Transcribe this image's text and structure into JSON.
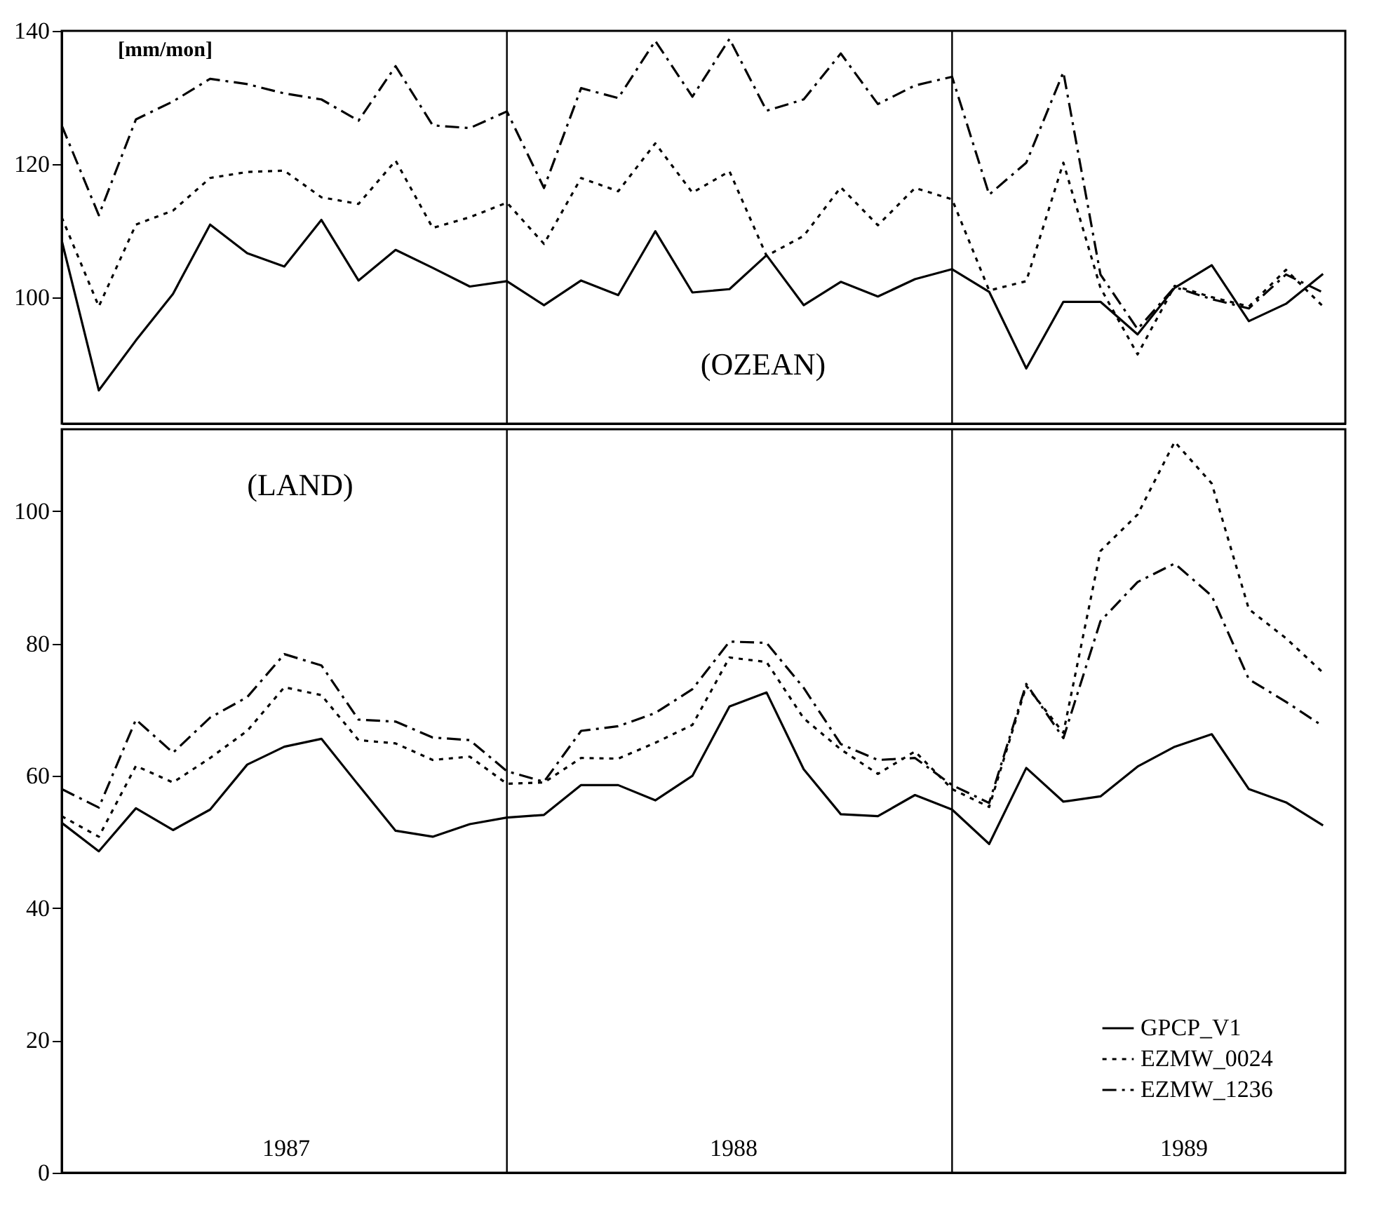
{
  "chart_data": [
    {
      "type": "line",
      "annotations": [
        "[mm/mon]",
        "(OZEAN)"
      ],
      "categories": [
        null,
        null,
        null,
        null,
        null,
        null,
        null,
        null,
        null,
        null,
        null,
        null,
        null,
        null,
        null,
        null,
        null,
        null,
        null,
        null,
        null,
        null,
        null,
        null,
        null,
        null,
        null,
        null,
        null,
        null,
        null,
        null,
        null,
        null,
        null
      ],
      "ylim": [
        81,
        140
      ],
      "yticks": [
        100,
        120,
        140
      ],
      "tick_labels": "y",
      "legend": false,
      "series": [
        {
          "color": "#000000",
          "line_style": "solid",
          "values": [
            108.5,
            86,
            93.5,
            100.5,
            110.9,
            106.6,
            104.6,
            111.6,
            102.5,
            107.1,
            104.4,
            101.6,
            102.4,
            98.8,
            102.5,
            100.3,
            109.9,
            100.7,
            101.2,
            106.3,
            98.8,
            102.3,
            100.1,
            102.7,
            104.2,
            100.8,
            89.3,
            99.3,
            99.3,
            94.4,
            101.4,
            104.8,
            96.4,
            99,
            103.5
          ]
        },
        {
          "color": "#000000",
          "line_style": "dotted",
          "values": [
            112,
            98.6,
            110.9,
            113,
            117.9,
            118.8,
            119,
            115,
            114,
            120.5,
            110.4,
            112,
            114.2,
            108,
            117.9,
            115.9,
            123.1,
            115.7,
            118.9,
            106.2,
            109.2,
            116.5,
            110.8,
            116.4,
            114.7,
            101,
            102.4,
            120.2,
            101.4,
            91.4,
            101.7,
            100,
            98.6,
            104.1,
            98.6
          ]
        },
        {
          "color": "#000000",
          "line_style": "dashed",
          "values": [
            125.8,
            112.3,
            126.7,
            129.4,
            132.8,
            132,
            130.6,
            129.7,
            126.5,
            134.7,
            125.8,
            125.4,
            127.9,
            116.4,
            131.4,
            129.9,
            138.5,
            130.1,
            138.8,
            128,
            129.7,
            136.6,
            129,
            131.8,
            133.1,
            115.4,
            120.2,
            133.8,
            103.4,
            95.2,
            101.5,
            99.7,
            98.3,
            103.4,
            100.7
          ]
        }
      ]
    },
    {
      "type": "line",
      "annotations": [
        "(LAND)",
        "1987",
        "1988",
        "1989"
      ],
      "categories": [
        null,
        null,
        null,
        null,
        null,
        null,
        null,
        null,
        null,
        null,
        null,
        null,
        null,
        null,
        null,
        null,
        null,
        null,
        null,
        null,
        null,
        null,
        null,
        null,
        null,
        null,
        null,
        null,
        null,
        null,
        null,
        null,
        null,
        null,
        null
      ],
      "ylim": [
        0,
        112.4
      ],
      "yticks": [
        0,
        20,
        40,
        60,
        80,
        100
      ],
      "tick_labels": "y",
      "legend": "bottom right",
      "series": [
        {
          "name": "GPCP_V1",
          "color": "#000000",
          "line_style": "solid",
          "values": [
            52.9,
            48.6,
            55.1,
            51.8,
            54.9,
            61.7,
            64.4,
            65.6,
            58.6,
            51.7,
            50.8,
            52.7,
            53.7,
            54.1,
            58.6,
            58.6,
            56.3,
            60,
            70.5,
            72.6,
            61,
            54.2,
            53.9,
            57.1,
            54.9,
            49.7,
            61.2,
            56.1,
            56.9,
            61.4,
            64.4,
            66.3,
            58,
            56,
            52.5
          ]
        },
        {
          "name": "EZMW_0024",
          "color": "#000000",
          "line_style": "dotted",
          "values": [
            53.9,
            50.8,
            61.5,
            59,
            62.7,
            66.8,
            73.4,
            72.2,
            65.4,
            64.9,
            62.4,
            62.9,
            58.8,
            59,
            62.7,
            62.6,
            65,
            67.7,
            77.9,
            77.2,
            68.7,
            64,
            60.3,
            63.7,
            58,
            55.3,
            73.6,
            66.5,
            94,
            99.5,
            110.5,
            104.2,
            85.2,
            80.8,
            75.6
          ]
        },
        {
          "name": "EZMW_1236",
          "color": "#000000",
          "line_style": "dashed",
          "values": [
            58,
            55.2,
            68.5,
            63.5,
            68.8,
            71.9,
            78.4,
            76.7,
            68.5,
            68.2,
            65.8,
            65.4,
            60.7,
            59.1,
            66.8,
            67.5,
            69.5,
            73.1,
            80.3,
            80.1,
            73.3,
            64.8,
            62.4,
            62.7,
            58.6,
            55.9,
            73.9,
            65.7,
            83.4,
            89.3,
            92.1,
            87.2,
            74.6,
            71.2,
            67.5
          ]
        }
      ]
    }
  ]
}
